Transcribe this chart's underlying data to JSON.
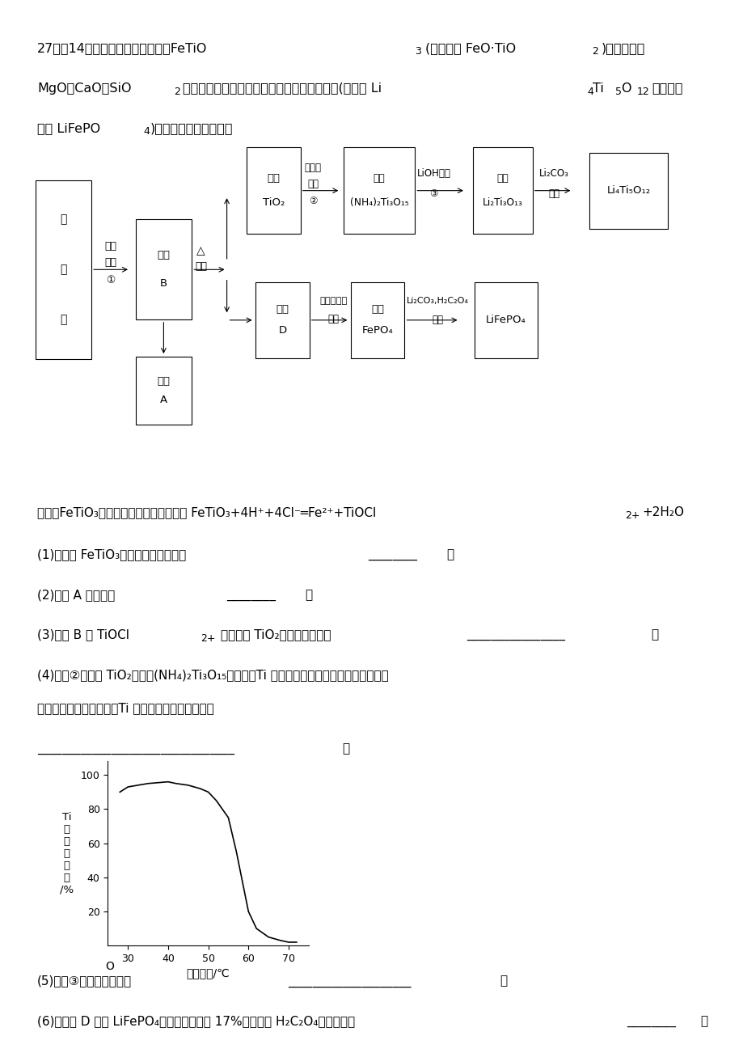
{
  "background_color": "#ffffff",
  "graph_x_data": [
    28,
    30,
    35,
    40,
    42,
    45,
    48,
    50,
    52,
    55,
    57,
    60,
    62,
    65,
    68,
    70,
    72
  ],
  "graph_y_data": [
    90,
    93,
    95,
    96,
    95,
    94,
    92,
    90,
    85,
    75,
    55,
    20,
    10,
    5,
    3,
    2,
    2
  ],
  "graph_xlim": [
    25,
    75
  ],
  "graph_ylim": [
    0,
    108
  ],
  "graph_xticks": [
    30,
    40,
    50,
    60,
    70
  ],
  "graph_yticks": [
    20,
    40,
    60,
    80,
    100
  ],
  "graph_xlabel": "反应温度/℃",
  "graph_ylabel": "Ti\n元\n素\n浸\n出\n率\n/%"
}
